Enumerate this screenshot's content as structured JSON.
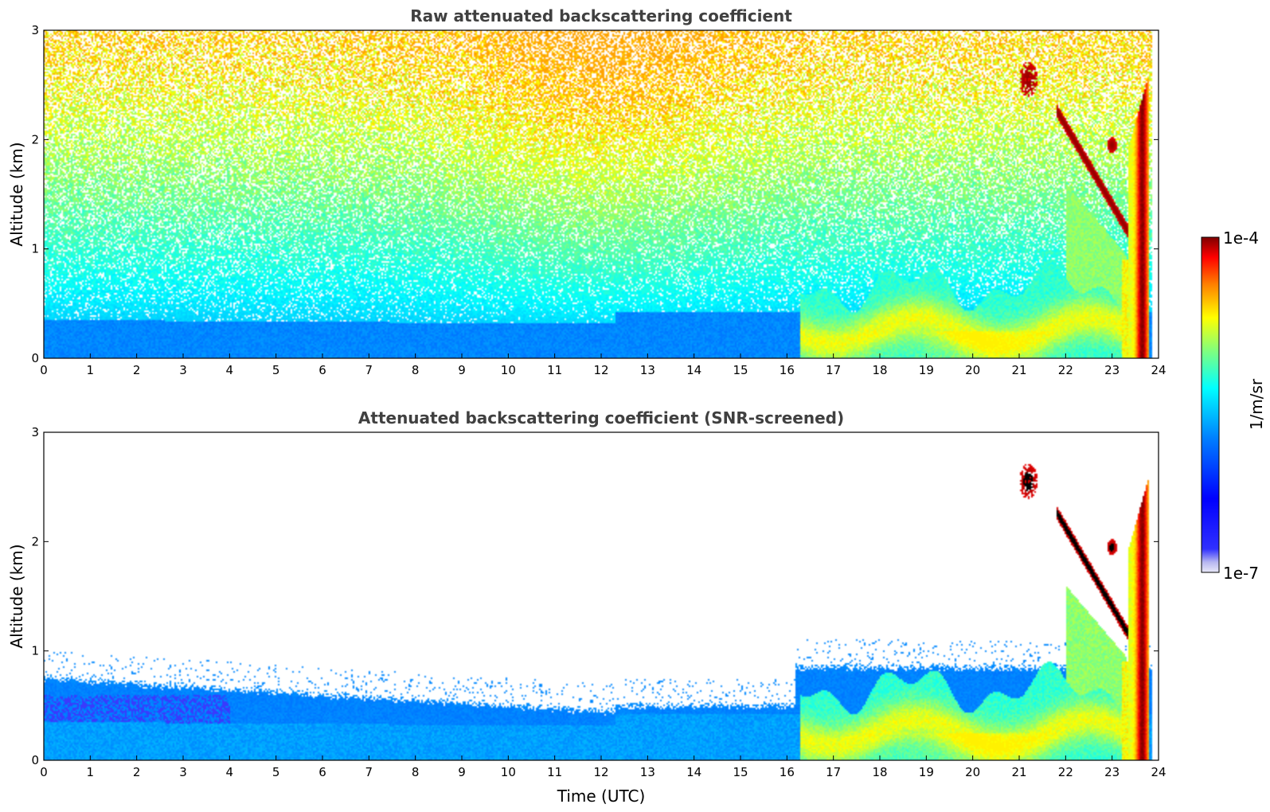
{
  "colors": {
    "jet_stops": [
      "#00007f",
      "#0000ff",
      "#007fff",
      "#00ffff",
      "#7fff7f",
      "#ffff00",
      "#ff7f00",
      "#ff0000",
      "#7f0000"
    ],
    "low_end": "#e8e8f8",
    "cloud_core": "#000000"
  },
  "chart_data": [
    {
      "type": "heatmap",
      "title": "Raw attenuated backscattering coefficient",
      "xlabel": "",
      "ylabel": "Altitude (km)",
      "xlim": [
        0,
        24
      ],
      "ylim": [
        0,
        3
      ],
      "xticks": [
        "0",
        "1",
        "2",
        "3",
        "4",
        "5",
        "6",
        "7",
        "8",
        "9",
        "10",
        "11",
        "12",
        "13",
        "14",
        "15",
        "16",
        "17",
        "18",
        "19",
        "20",
        "21",
        "22",
        "23",
        "24"
      ],
      "yticks": [
        "0",
        "1",
        "2",
        "3"
      ],
      "grid": false,
      "features": [
        {
          "feature": "noise",
          "x": [
            0,
            24
          ],
          "y": [
            0.3,
            3
          ]
        },
        {
          "feature": "boundary layer",
          "x": [
            0,
            16.5
          ],
          "top_km": 0.35
        },
        {
          "feature": "aerosol layer",
          "x": [
            16.5,
            23.2
          ],
          "y": [
            0.1,
            0.8
          ]
        },
        {
          "feature": "cloud",
          "x": [
            20.8,
            21.6
          ],
          "y": [
            2.3,
            2.8
          ]
        },
        {
          "feature": "cloud",
          "x": [
            21.8,
            23.8
          ],
          "y": [
            0.6,
            2.2
          ]
        },
        {
          "feature": "precipitation",
          "x": [
            23.2,
            23.8
          ],
          "y": [
            0,
            2.6
          ]
        }
      ]
    },
    {
      "type": "heatmap",
      "title": "Attenuated backscattering coefficient (SNR-screened)",
      "xlabel": "Time (UTC)",
      "ylabel": "Altitude (km)",
      "xlim": [
        0,
        24
      ],
      "ylim": [
        0,
        3
      ],
      "xticks": [
        "0",
        "1",
        "2",
        "3",
        "4",
        "5",
        "6",
        "7",
        "8",
        "9",
        "10",
        "11",
        "12",
        "13",
        "14",
        "15",
        "16",
        "17",
        "18",
        "19",
        "20",
        "21",
        "22",
        "23",
        "24"
      ],
      "yticks": [
        "0",
        "1",
        "2",
        "3"
      ],
      "grid": false,
      "features": [
        {
          "feature": "boundary layer",
          "x": [
            0,
            16.2
          ],
          "top_km": 0.75
        },
        {
          "feature": "aerosol layer",
          "x": [
            16.2,
            23.2
          ],
          "y": [
            0.1,
            0.85
          ]
        },
        {
          "feature": "cloud",
          "x": [
            20.8,
            21.6
          ],
          "y": [
            2.3,
            2.8
          ]
        },
        {
          "feature": "cloud",
          "x": [
            21.8,
            23.8
          ],
          "y": [
            0.6,
            2.2
          ]
        },
        {
          "feature": "precipitation",
          "x": [
            23.2,
            23.8
          ],
          "y": [
            0,
            2.6
          ]
        }
      ]
    }
  ],
  "colorbar": {
    "label": "1/m/sr",
    "max_label": "1e-4",
    "min_label": "1e-7",
    "scale": "log",
    "range": [
      1e-07,
      0.0001
    ]
  }
}
